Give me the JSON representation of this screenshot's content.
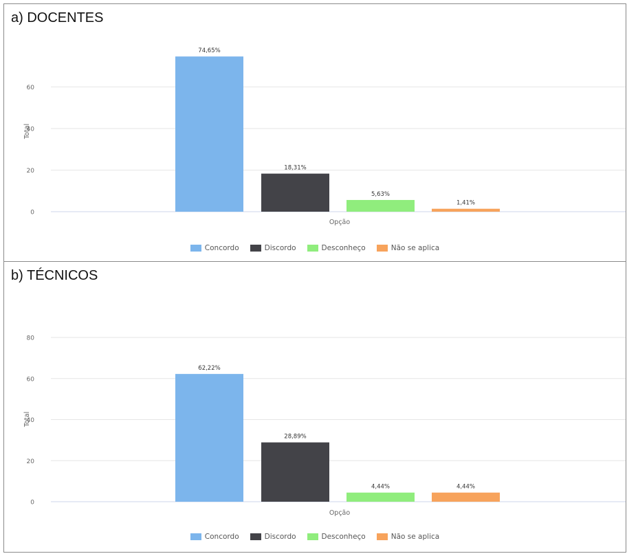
{
  "panels": [
    {
      "title": "a) DOCENTES"
    },
    {
      "title": "b) TÉCNICOS"
    }
  ],
  "legend": [
    {
      "label": "Concordo",
      "color": "#7cb5ec"
    },
    {
      "label": "Discordo",
      "color": "#434348"
    },
    {
      "label": "Desconheço",
      "color": "#90ed7d"
    },
    {
      "label": "Não se aplica",
      "color": "#f7a35c"
    }
  ],
  "chart_data": [
    {
      "type": "bar",
      "title": "a) DOCENTES",
      "xlabel": "Opção",
      "ylabel": "Total",
      "ylim": [
        0,
        80
      ],
      "yticks": [
        0,
        20,
        40,
        60
      ],
      "grid": true,
      "legend_position": "bottom",
      "categories": [
        "Concordo",
        "Discordo",
        "Desconheço",
        "Não se aplica"
      ],
      "values": [
        74.65,
        18.31,
        5.63,
        1.41
      ],
      "data_labels": [
        "74,65%",
        "18,31%",
        "5,63%",
        "1,41%"
      ]
    },
    {
      "type": "bar",
      "title": "b) TÉCNICOS",
      "xlabel": "Opção",
      "ylabel": "Total",
      "ylim": [
        0,
        80
      ],
      "yticks": [
        0,
        20,
        40,
        60,
        80
      ],
      "grid": true,
      "legend_position": "bottom",
      "categories": [
        "Concordo",
        "Discordo",
        "Desconheço",
        "Não se aplica"
      ],
      "values": [
        62.22,
        28.89,
        4.44,
        4.44
      ],
      "data_labels": [
        "62,22%",
        "28,89%",
        "4,44%",
        "4,44%"
      ]
    }
  ]
}
